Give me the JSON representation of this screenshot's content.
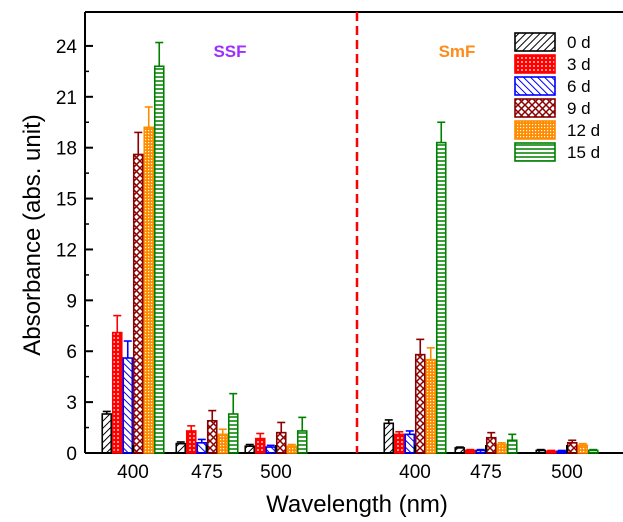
{
  "chart_data": {
    "type": "bar",
    "xlabel": "Wavelength (nm)",
    "ylabel": "Absorbance (abs. unit)",
    "ylim": [
      0,
      26
    ],
    "yticks": [
      0,
      3,
      6,
      9,
      12,
      15,
      18,
      21,
      24
    ],
    "grid": false,
    "legend_position": "top-right",
    "panels": [
      {
        "label": "SSF",
        "label_color": "#9b30ff",
        "categories": [
          "400",
          "475",
          "500"
        ],
        "series": [
          {
            "name": "0  d",
            "values": [
              2.3,
              0.55,
              0.4
            ],
            "errors": [
              0.15,
              0.1,
              0.1
            ]
          },
          {
            "name": "3  d",
            "values": [
              7.1,
              1.3,
              0.85
            ],
            "errors": [
              1.0,
              0.3,
              0.3
            ]
          },
          {
            "name": "6  d",
            "values": [
              5.6,
              0.6,
              0.35
            ],
            "errors": [
              1.0,
              0.2,
              0.1
            ]
          },
          {
            "name": "9  d",
            "values": [
              17.6,
              1.9,
              1.2
            ],
            "errors": [
              1.3,
              0.6,
              0.6
            ]
          },
          {
            "name": "12 d",
            "values": [
              19.2,
              1.1,
              0.4
            ],
            "errors": [
              1.2,
              0.3,
              0.1
            ]
          },
          {
            "name": "15 d",
            "values": [
              22.8,
              2.3,
              1.3
            ],
            "errors": [
              1.4,
              1.2,
              0.8
            ]
          }
        ]
      },
      {
        "label": "SmF",
        "label_color": "#ff8c1a",
        "categories": [
          "400",
          "475",
          "500"
        ],
        "series": [
          {
            "name": "0  d",
            "values": [
              1.75,
              0.3,
              0.15
            ],
            "errors": [
              0.2,
              0.05,
              0.05
            ]
          },
          {
            "name": "3  d",
            "values": [
              1.1,
              0.15,
              0.1
            ],
            "errors": [
              0.15,
              0.05,
              0.05
            ]
          },
          {
            "name": "6  d",
            "values": [
              1.1,
              0.15,
              0.1
            ],
            "errors": [
              0.2,
              0.05,
              0.05
            ]
          },
          {
            "name": "9  d",
            "values": [
              5.8,
              0.9,
              0.6
            ],
            "errors": [
              0.9,
              0.3,
              0.15
            ]
          },
          {
            "name": "12 d",
            "values": [
              5.5,
              0.5,
              0.45
            ],
            "errors": [
              0.7,
              0.1,
              0.1
            ]
          },
          {
            "name": "15 d",
            "values": [
              18.3,
              0.75,
              0.15
            ],
            "errors": [
              1.2,
              0.35,
              0.05
            ]
          }
        ]
      }
    ],
    "colors": [
      "#000000",
      "#ff0000",
      "#0000ff",
      "#8b0000",
      "#ff8c00",
      "#008000"
    ],
    "patterns": [
      "diagonal",
      "dots",
      "diagonal",
      "crosshatch",
      "grid",
      "horizontal"
    ],
    "divider_color": "#ff0000"
  }
}
